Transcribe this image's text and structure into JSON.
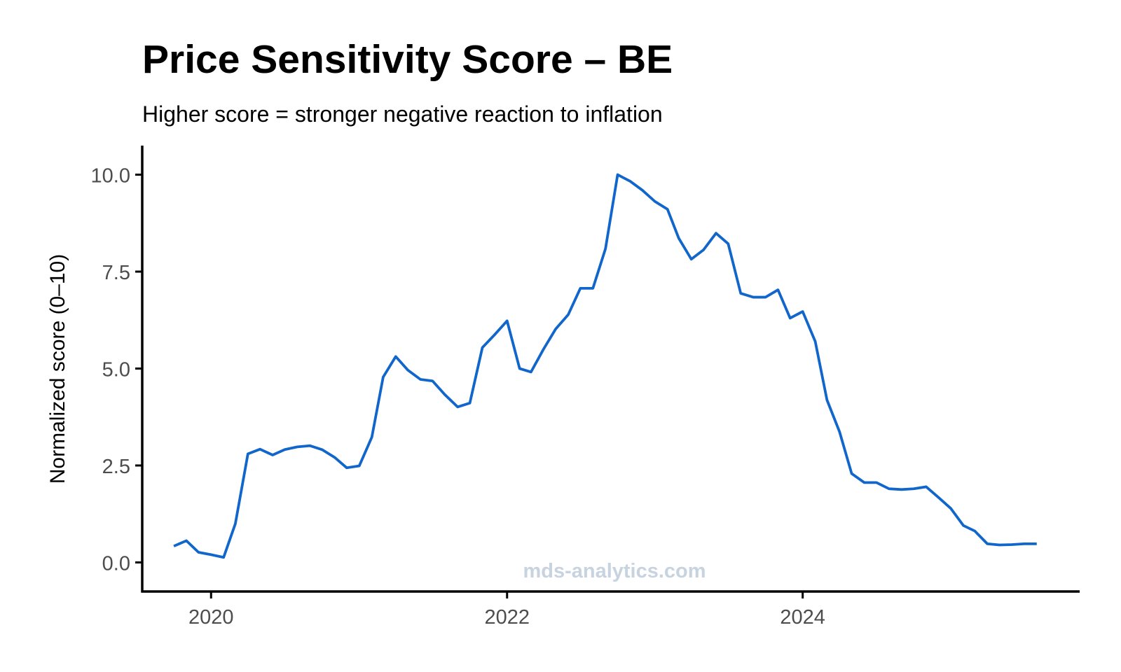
{
  "chart_data": {
    "type": "line",
    "title": "Price Sensitivity Score – BE",
    "subtitle": "Higher score = stronger negative reaction to inflation",
    "ylabel": "Normalized score (0–10)",
    "xlabel": "",
    "ylim": [
      -0.75,
      10.75
    ],
    "yticks": [
      0,
      2.5,
      5,
      7.5,
      10
    ],
    "ytick_labels": [
      "0.0",
      "2.5",
      "5.0",
      "7.5",
      "10.0"
    ],
    "xlim": [
      "2019-07-15",
      "2025-11-15"
    ],
    "xticks": [
      "2020-01-01",
      "2022-01-01",
      "2024-01-01"
    ],
    "xtick_labels": [
      "2020",
      "2022",
      "2024"
    ],
    "grid": false,
    "line_color": "#1166cc",
    "watermark": "mds-analytics.com",
    "watermark_color": "#c8d3e0",
    "series": [
      {
        "x": [
          "2019-10-01",
          "2019-11-01",
          "2019-12-01",
          "2020-01-01",
          "2020-02-01",
          "2020-03-01",
          "2020-04-01",
          "2020-05-01",
          "2020-06-01",
          "2020-07-01",
          "2020-08-01",
          "2020-09-01",
          "2020-10-01",
          "2020-11-01",
          "2020-12-01",
          "2021-01-01",
          "2021-02-01",
          "2021-03-01",
          "2021-04-01",
          "2021-05-01",
          "2021-06-01",
          "2021-07-01",
          "2021-08-01",
          "2021-09-01",
          "2021-10-01",
          "2021-11-01",
          "2021-12-01",
          "2022-01-01",
          "2022-02-01",
          "2022-03-01",
          "2022-04-01",
          "2022-05-01",
          "2022-06-01",
          "2022-07-01",
          "2022-08-01",
          "2022-09-01",
          "2022-10-01",
          "2022-11-01",
          "2022-12-01",
          "2023-01-01",
          "2023-02-01",
          "2023-03-01",
          "2023-04-01",
          "2023-05-01",
          "2023-06-01",
          "2023-07-01",
          "2023-08-01",
          "2023-09-01",
          "2023-10-01",
          "2023-11-01",
          "2023-12-01",
          "2024-01-01",
          "2024-02-01",
          "2024-03-01",
          "2024-04-01",
          "2024-05-01",
          "2024-06-01",
          "2024-07-01",
          "2024-08-01",
          "2024-09-01",
          "2024-10-01",
          "2024-11-01",
          "2024-12-01",
          "2025-01-01",
          "2025-02-01",
          "2025-03-01",
          "2025-04-01",
          "2025-05-01",
          "2025-06-01",
          "2025-07-01",
          "2025-08-01"
        ],
        "values": [
          0.42,
          0.56,
          0.26,
          0.2,
          0.13,
          1.0,
          2.8,
          2.92,
          2.77,
          2.91,
          2.98,
          3.01,
          2.91,
          2.71,
          2.44,
          2.49,
          3.23,
          4.78,
          5.31,
          4.96,
          4.72,
          4.68,
          4.32,
          4.01,
          4.11,
          5.54,
          5.87,
          6.23,
          5.0,
          4.91,
          5.5,
          6.02,
          6.39,
          7.07,
          7.07,
          8.09,
          10.0,
          9.83,
          9.6,
          9.31,
          9.11,
          8.36,
          7.82,
          8.06,
          8.49,
          8.22,
          6.94,
          6.84,
          6.84,
          7.03,
          6.3,
          6.47,
          5.7,
          4.19,
          3.37,
          2.29,
          2.06,
          2.06,
          1.9,
          1.88,
          1.9,
          1.95,
          1.68,
          1.39,
          0.95,
          0.81,
          0.48,
          0.45,
          0.46,
          0.48,
          0.48
        ]
      }
    ]
  }
}
